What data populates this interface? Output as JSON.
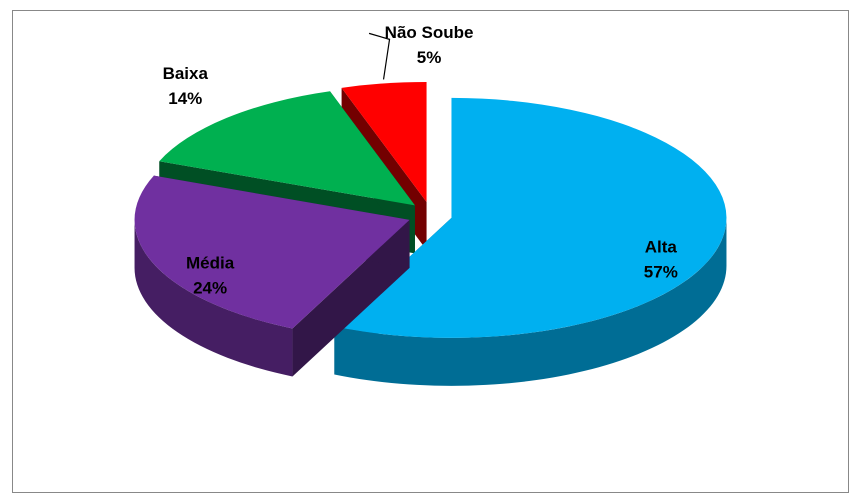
{
  "chart_data": {
    "type": "pie",
    "categories": [
      "Alta",
      "Média",
      "Baixa",
      "Não Soube"
    ],
    "values": [
      57,
      24,
      14,
      5
    ],
    "value_labels": [
      "57%",
      "24%",
      "14%",
      "5%"
    ],
    "colors": [
      "#00b0f0",
      "#7030a0",
      "#00b050",
      "#ff0000"
    ]
  }
}
